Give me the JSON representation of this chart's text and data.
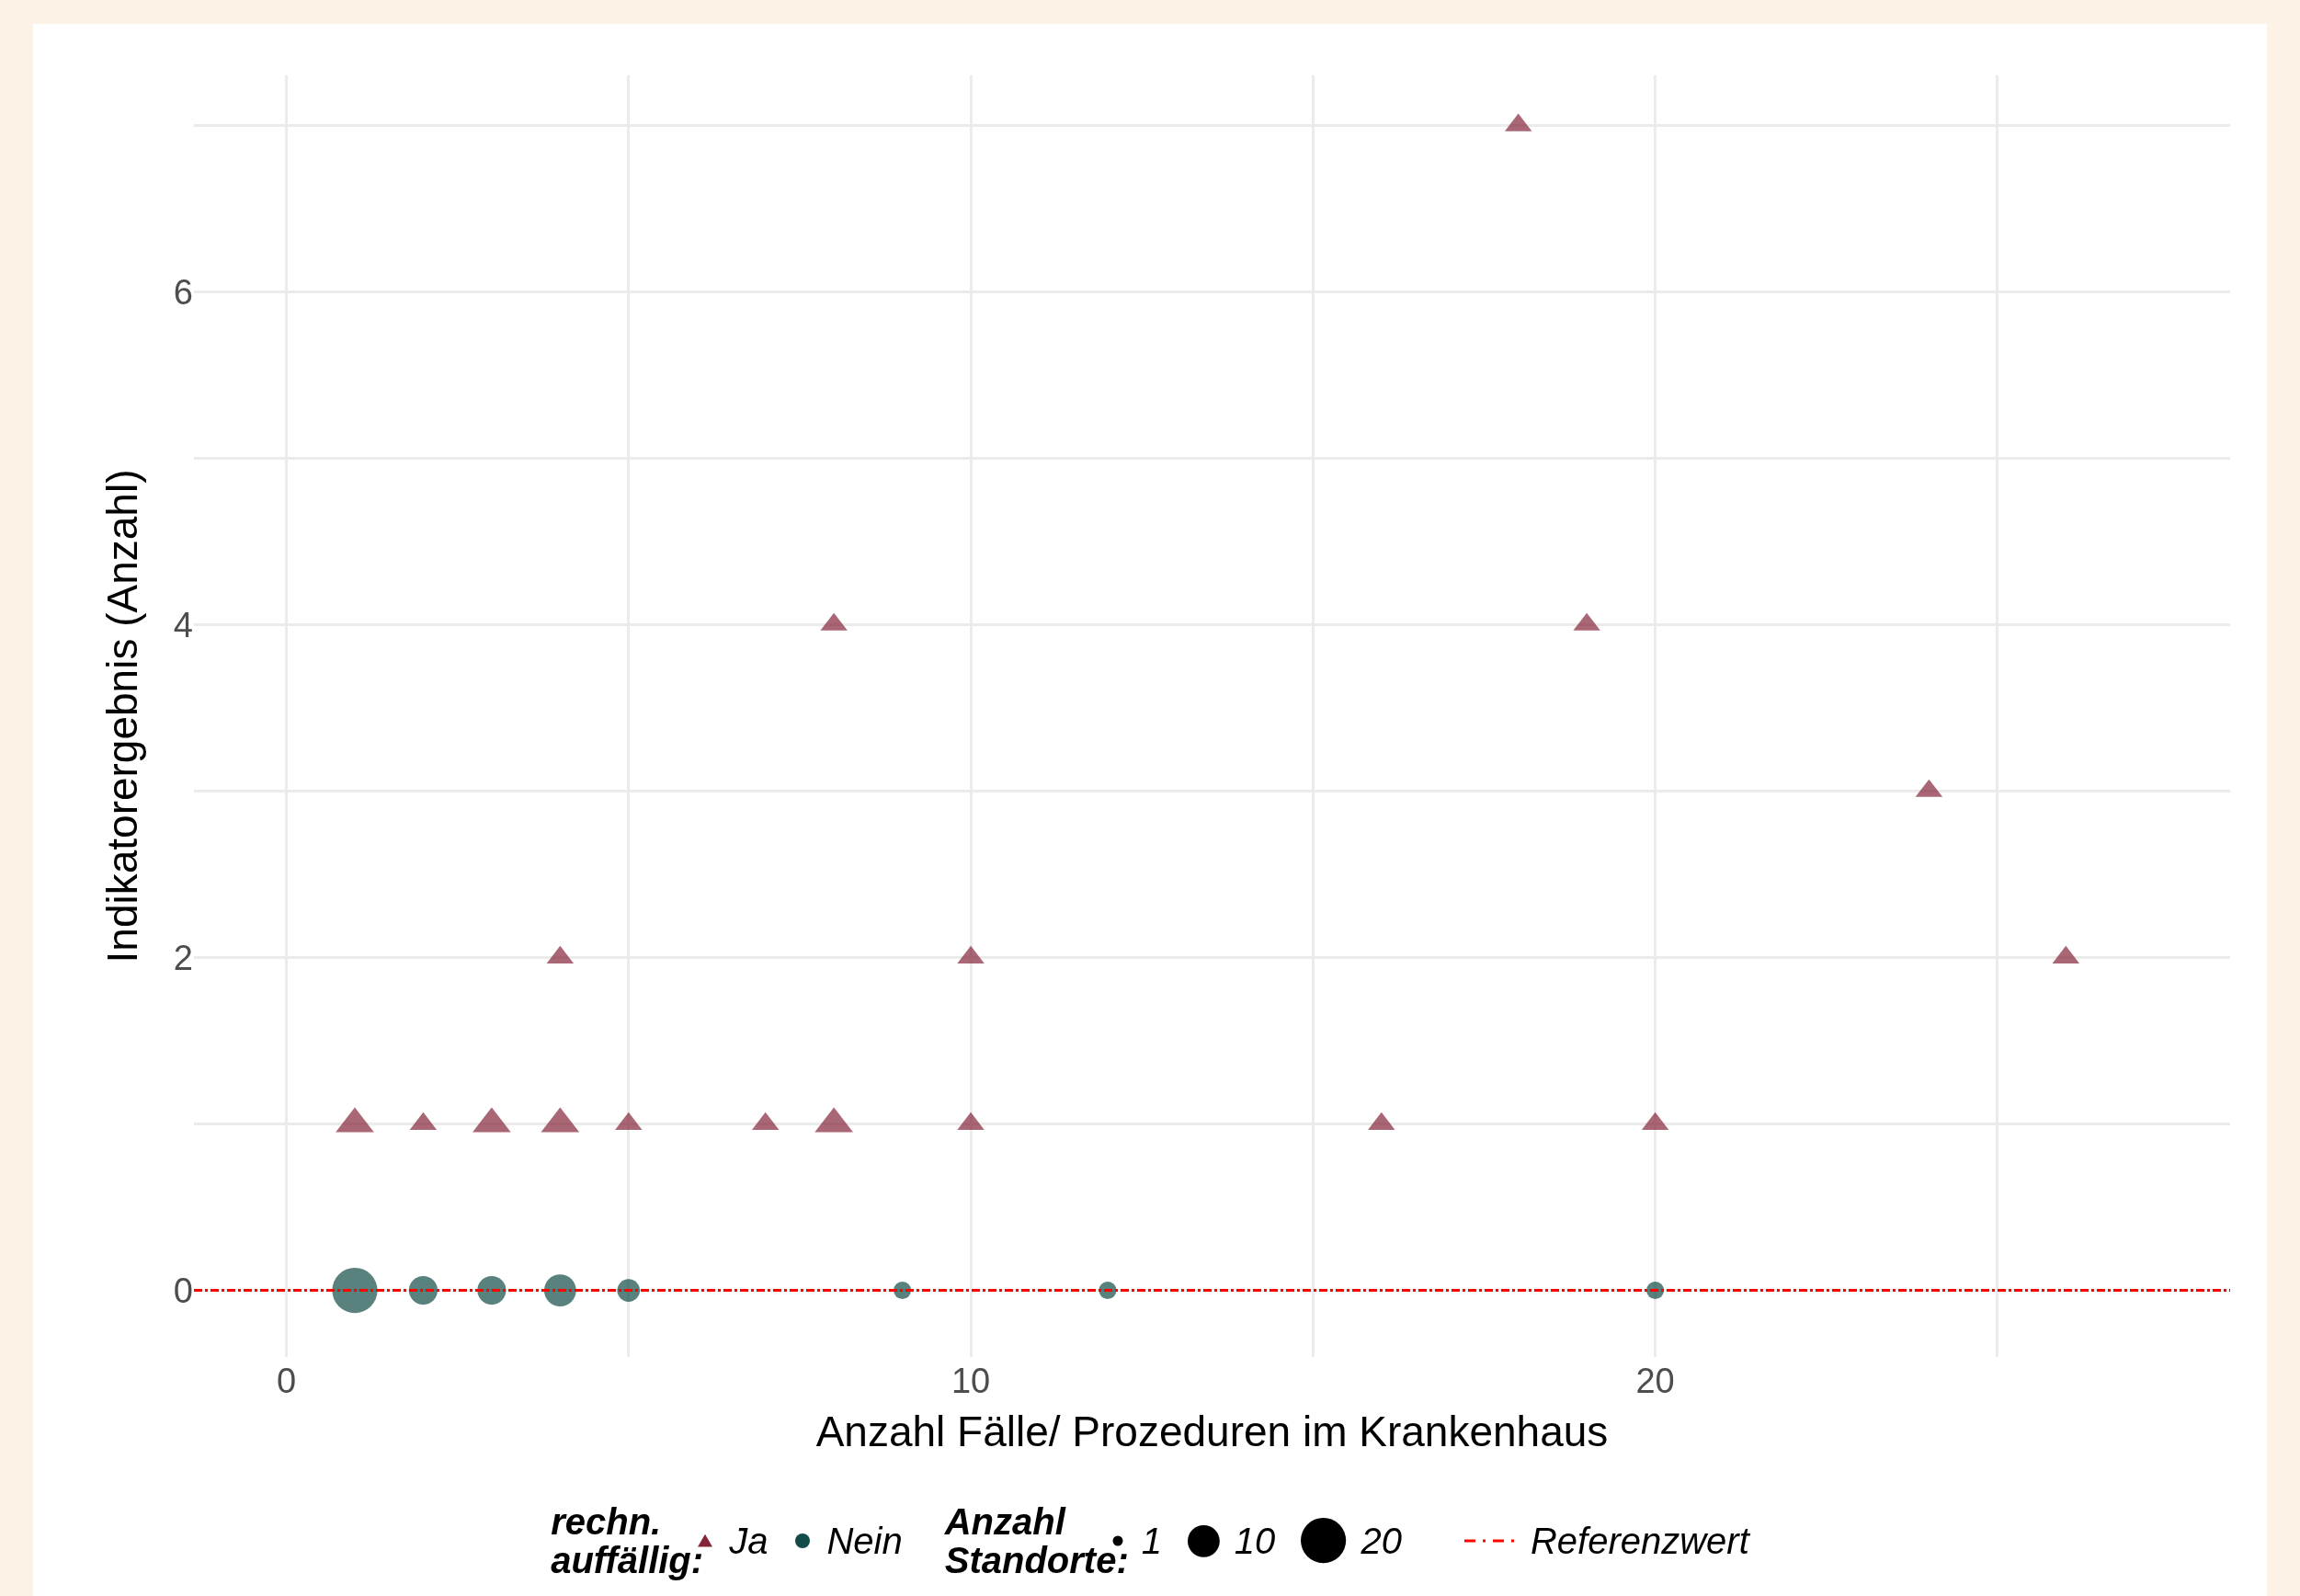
{
  "chart_data": {
    "type": "bubble",
    "xlabel": "Anzahl Fälle/ Prozeduren im Krankenhaus",
    "ylabel": "Indikatorergebnis (Anzahl)",
    "legend_title": "rechn. auffällig:",
    "annotations": [
      "Anzahl Standorte:"
    ],
    "series": [
      {
        "name": "Ja",
        "color": "#84263a",
        "marker": "triangle",
        "x": [
          1,
          2,
          3,
          4,
          4,
          5,
          7,
          8,
          8,
          10,
          10,
          16,
          18,
          19,
          20,
          24,
          26
        ],
        "values": [
          1,
          1,
          1,
          1,
          2,
          1,
          1,
          1,
          4,
          1,
          2,
          1,
          7,
          4,
          1,
          3,
          2
        ],
        "sizes": [
          6,
          3,
          6,
          6,
          3,
          3,
          3,
          6,
          3,
          3,
          3,
          3,
          3,
          3,
          3,
          3,
          3
        ]
      },
      {
        "name": "Nein",
        "color": "#124b47",
        "marker": "circle",
        "x": [
          1,
          2,
          3,
          4,
          5,
          9,
          12,
          20
        ],
        "values": [
          0,
          0,
          0,
          0,
          0,
          0,
          0,
          0
        ],
        "sizes": [
          20,
          8,
          8,
          10,
          5,
          3,
          3,
          3
        ]
      }
    ],
    "size_legend": [
      1,
      10,
      20
    ],
    "xlim": [
      -1.35,
      28.4
    ],
    "xticks": [
      0,
      {
        "value": 5,
        "label": null
      },
      10,
      {
        "value": 15,
        "label": null
      },
      20,
      {
        "value": 25,
        "label": null
      }
    ],
    "ylim": [
      -0.4,
      7.3
    ],
    "yticks": [
      0,
      {
        "value": 1,
        "label": null
      },
      2,
      {
        "value": 3,
        "label": null
      },
      4,
      {
        "value": 5,
        "label": null
      },
      6,
      {
        "value": 7,
        "label": null
      }
    ],
    "ref_lines": [
      {
        "axis": "y",
        "value": 0,
        "label": "Referenzwert",
        "color": "#ff0000",
        "line_style": "dashed"
      }
    ],
    "grid": true,
    "legend": "bottom"
  }
}
